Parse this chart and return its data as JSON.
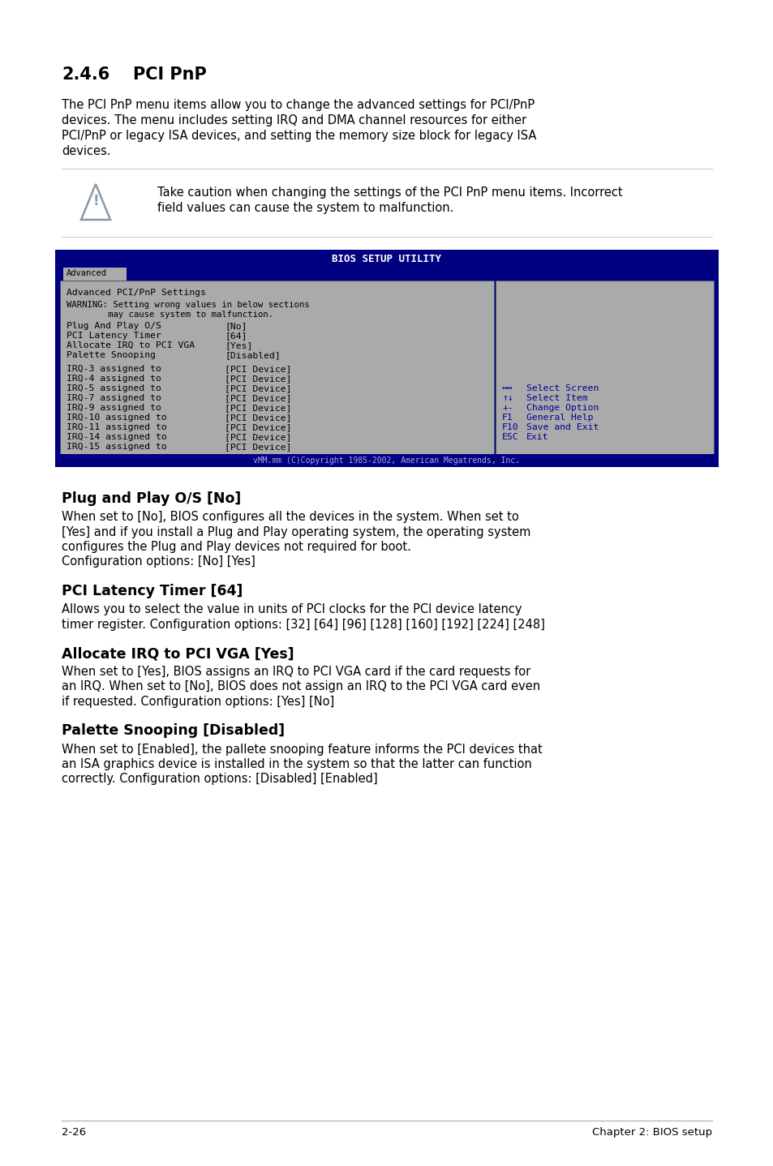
{
  "page_bg": "#ffffff",
  "section_number": "2.4.6",
  "section_title": "PCI PnP",
  "intro_text_lines": [
    "The PCI PnP menu items allow you to change the advanced settings for PCI/PnP",
    "devices. The menu includes setting IRQ and DMA channel resources for either",
    "PCI/PnP or legacy ISA devices, and setting the memory size block for legacy ISA",
    "devices."
  ],
  "warning_line1": "Take caution when changing the settings of the PCI PnP menu items. Incorrect",
  "warning_line2": "field values can cause the system to malfunction.",
  "bios_title": "BIOS SETUP UTILITY",
  "bios_tab": "Advanced",
  "bios_header": "Advanced PCI/PnP Settings",
  "bios_warning_line1": "WARNING: Setting wrong values in below sections",
  "bios_warning_line2": "        may cause system to malfunction.",
  "bios_settings": [
    [
      "Plug And Play O/S",
      "[No]"
    ],
    [
      "PCI Latency Timer",
      "[64]"
    ],
    [
      "Allocate IRQ to PCI VGA",
      "[Yes]"
    ],
    [
      "Palette Snooping",
      "[Disabled]"
    ]
  ],
  "bios_irqs": [
    [
      "IRQ-3 assigned to",
      "[PCI Device]"
    ],
    [
      "IRQ-4 assigned to",
      "[PCI Device]"
    ],
    [
      "IRQ-5 assigned to",
      "[PCI Device]"
    ],
    [
      "IRQ-7 assigned to",
      "[PCI Device]"
    ],
    [
      "IRQ-9 assigned to",
      "[PCI Device]"
    ],
    [
      "IRQ-10 assigned to",
      "[PCI Device]"
    ],
    [
      "IRQ-11 assigned to",
      "[PCI Device]"
    ],
    [
      "IRQ-14 assigned to",
      "[PCI Device]"
    ],
    [
      "IRQ-15 assigned to",
      "[PCI Device]"
    ]
  ],
  "bios_nav_items": [
    [
      "↔↔",
      "Select Screen"
    ],
    [
      "↑↓",
      "Select Item"
    ],
    [
      "+-",
      "Change Option"
    ],
    [
      "F1",
      "General Help"
    ],
    [
      "F10",
      "Save and Exit"
    ],
    [
      "ESC",
      "Exit"
    ]
  ],
  "bios_footer": "vMM.mm (C)Copyright 1985-2002, American Megatrends, Inc.",
  "bios_blue": "#000080",
  "bios_gray": "#aaaaaa",
  "bios_nav_color": "#000099",
  "sections": [
    {
      "heading": "Plug and Play O/S [No]",
      "body_lines": [
        "When set to [No], BIOS configures all the devices in the system. When set to",
        "[Yes] and if you install a Plug and Play operating system, the operating system",
        "configures the Plug and Play devices not required for boot.",
        "Configuration options: [No] [Yes]"
      ]
    },
    {
      "heading": "PCI Latency Timer [64]",
      "body_lines": [
        "Allows you to select the value in units of PCI clocks for the PCI device latency",
        "timer register. Configuration options: [32] [64] [96] [128] [160] [192] [224] [248]"
      ]
    },
    {
      "heading": "Allocate IRQ to PCI VGA [Yes]",
      "body_lines": [
        "When set to [Yes], BIOS assigns an IRQ to PCI VGA card if the card requests for",
        "an IRQ. When set to [No], BIOS does not assign an IRQ to the PCI VGA card even",
        "if requested. Configuration options: [Yes] [No]"
      ]
    },
    {
      "heading": "Palette Snooping [Disabled]",
      "body_lines": [
        "When set to [Enabled], the pallete snooping feature informs the PCI devices that",
        "an ISA graphics device is installed in the system so that the latter can function",
        "correctly. Configuration options: [Disabled] [Enabled]"
      ]
    }
  ],
  "footer_left": "2-26",
  "footer_right": "Chapter 2: BIOS setup"
}
